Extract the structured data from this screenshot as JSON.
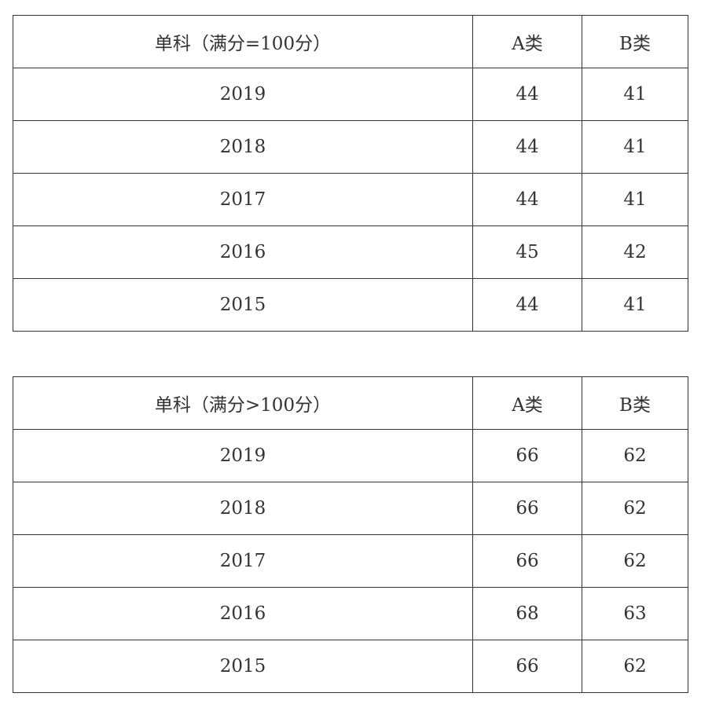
{
  "tables": [
    {
      "header": [
        "单科（满分=100分）",
        "A类",
        "B类"
      ],
      "rows": [
        [
          "2019",
          "44",
          "41"
        ],
        [
          "2018",
          "44",
          "41"
        ],
        [
          "2017",
          "44",
          "41"
        ],
        [
          "2016",
          "45",
          "42"
        ],
        [
          "2015",
          "44",
          "41"
        ]
      ]
    },
    {
      "header": [
        "单科（满分>100分）",
        "A类",
        "B类"
      ],
      "rows": [
        [
          "2019",
          "66",
          "62"
        ],
        [
          "2018",
          "66",
          "62"
        ],
        [
          "2017",
          "66",
          "62"
        ],
        [
          "2016",
          "68",
          "63"
        ],
        [
          "2015",
          "66",
          "62"
        ]
      ]
    }
  ]
}
